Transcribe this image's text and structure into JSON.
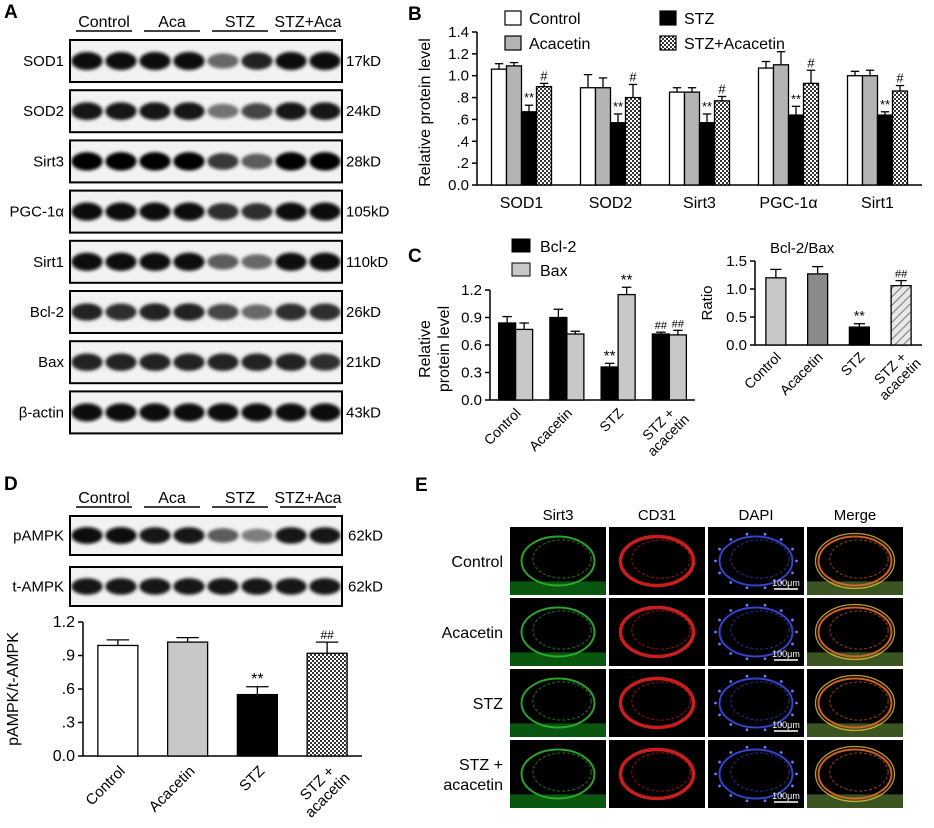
{
  "panels": {
    "A": "A",
    "B": "B",
    "C": "C",
    "D": "D",
    "E": "E"
  },
  "panel_a": {
    "groups": [
      "Control",
      "Aca",
      "STZ",
      "STZ+Aca"
    ],
    "blots": [
      {
        "name": "SOD1",
        "size": "17kD",
        "intensity": [
          0.95,
          0.95,
          0.95,
          0.95,
          0.55,
          0.85,
          0.95,
          0.95
        ]
      },
      {
        "name": "SOD2",
        "size": "24kD",
        "intensity": [
          0.9,
          0.9,
          0.9,
          0.9,
          0.5,
          0.7,
          0.9,
          0.9
        ]
      },
      {
        "name": "Sirt3",
        "size": "28kD",
        "intensity": [
          1,
          1,
          1,
          1,
          0.75,
          0.6,
          1,
          1
        ]
      },
      {
        "name": "PGC-1α",
        "size": "105kD",
        "intensity": [
          0.95,
          0.95,
          0.95,
          0.95,
          0.8,
          0.8,
          0.95,
          0.95
        ]
      },
      {
        "name": "Sirt1",
        "size": "110kD",
        "intensity": [
          0.95,
          0.95,
          0.95,
          0.95,
          0.6,
          0.55,
          0.95,
          0.95
        ]
      },
      {
        "name": "Bcl-2",
        "size": "26kD",
        "intensity": [
          0.85,
          0.8,
          0.85,
          0.85,
          0.7,
          0.55,
          0.8,
          0.8
        ]
      },
      {
        "name": "Bax",
        "size": "21kD",
        "intensity": [
          0.85,
          0.85,
          0.85,
          0.85,
          0.85,
          0.85,
          0.85,
          0.8
        ]
      },
      {
        "name": "β-actin",
        "size": "43kD",
        "intensity": [
          0.95,
          0.95,
          0.95,
          0.95,
          0.95,
          0.95,
          0.95,
          0.95
        ]
      }
    ]
  },
  "panel_d_blots": {
    "groups": [
      "Control",
      "Aca",
      "STZ",
      "STZ+Aca"
    ],
    "blots": [
      {
        "name": "pAMPK",
        "size": "62kD",
        "intensity": [
          0.95,
          0.95,
          0.9,
          0.9,
          0.6,
          0.45,
          0.9,
          0.9
        ]
      },
      {
        "name": "t-AMPK",
        "size": "62kD",
        "intensity": [
          0.9,
          0.9,
          0.9,
          0.9,
          0.9,
          0.9,
          0.9,
          0.9
        ]
      }
    ]
  },
  "panel_e": {
    "columns": [
      "Sirt3",
      "CD31",
      "DAPI",
      "Merge"
    ],
    "rows": [
      "Control",
      "Acacetin",
      "STZ",
      "STZ +\nacacetin"
    ],
    "row_lines": [
      [
        "Control"
      ],
      [
        "Acacetin"
      ],
      [
        "STZ"
      ],
      [
        "STZ +",
        "acacetin"
      ]
    ],
    "scale_bar": "100μm",
    "column_colors": [
      "#2fb52f",
      "#e02020",
      "#3a4adf",
      "#e06a2a"
    ]
  },
  "chart_data": [
    {
      "id": "B",
      "type": "bar",
      "categories": [
        "SOD1",
        "SOD2",
        "Sirt3",
        "PGC-1α",
        "Sirt1"
      ],
      "ylabel": "Relative protein level",
      "ylim": [
        0,
        1.4
      ],
      "yticks": [
        "0.0",
        ".2",
        ".4",
        ".6",
        ".8",
        "1.0",
        "1.2",
        "1.4"
      ],
      "series": [
        {
          "name": "Control",
          "values": [
            1.06,
            0.89,
            0.85,
            1.07,
            1.0
          ],
          "errors": [
            0.05,
            0.12,
            0.04,
            0.06,
            0.04
          ],
          "fill": "white",
          "marks": [
            "",
            "",
            "",
            "",
            ""
          ]
        },
        {
          "name": "Acacetin",
          "values": [
            1.09,
            0.89,
            0.85,
            1.1,
            1.0
          ],
          "errors": [
            0.03,
            0.09,
            0.04,
            0.12,
            0.05
          ],
          "fill": "grey",
          "marks": [
            "",
            "",
            "",
            "",
            ""
          ]
        },
        {
          "name": "STZ",
          "values": [
            0.67,
            0.57,
            0.57,
            0.64,
            0.64
          ],
          "errors": [
            0.06,
            0.08,
            0.08,
            0.08,
            0.03
          ],
          "fill": "black",
          "marks": [
            "**",
            "**",
            "**",
            "**",
            "**"
          ]
        },
        {
          "name": "STZ+Acacetin",
          "values": [
            0.9,
            0.8,
            0.77,
            0.93,
            0.86
          ],
          "errors": [
            0.03,
            0.12,
            0.04,
            0.12,
            0.05
          ],
          "fill": "check",
          "marks": [
            "#",
            "#",
            "#",
            "#",
            "#"
          ]
        }
      ]
    },
    {
      "id": "C-left",
      "type": "bar",
      "categories": [
        "Control",
        "Acacetin",
        "STZ",
        "STZ +\nacacetin"
      ],
      "category_lines": [
        [
          "Control"
        ],
        [
          "Acacetin"
        ],
        [
          "STZ"
        ],
        [
          "STZ +",
          "acacetin"
        ]
      ],
      "ylabel": "Relative protein level",
      "ylabel_lines": [
        "Relative",
        "protein level"
      ],
      "ylim": [
        0,
        1.2
      ],
      "yticks": [
        "0.0",
        "0.3",
        "0.6",
        "0.9",
        "1.2"
      ],
      "series": [
        {
          "name": "Bcl-2",
          "values": [
            0.84,
            0.9,
            0.36,
            0.72
          ],
          "errors": [
            0.07,
            0.09,
            0.04,
            0.02
          ],
          "fill": "black",
          "marks": [
            "",
            "",
            "**",
            "##"
          ]
        },
        {
          "name": "Bax",
          "values": [
            0.77,
            0.72,
            1.15,
            0.71
          ],
          "errors": [
            0.07,
            0.03,
            0.08,
            0.05
          ],
          "fill": "lightgrey",
          "marks": [
            "",
            "",
            "**",
            "##"
          ]
        }
      ]
    },
    {
      "id": "C-right",
      "type": "bar",
      "title": "Bcl-2/Bax",
      "categories": [
        "Control",
        "Acacetin",
        "STZ",
        "STZ +\nacacetin"
      ],
      "category_lines": [
        [
          "Control"
        ],
        [
          "Acacetin"
        ],
        [
          "STZ"
        ],
        [
          "STZ +",
          "acacetin"
        ]
      ],
      "ylabel": "Ratio",
      "ylim": [
        0,
        1.5
      ],
      "yticks": [
        "0.0",
        "0.5",
        "1.0",
        "1.5"
      ],
      "values": [
        1.2,
        1.27,
        0.32,
        1.06
      ],
      "errors": [
        0.15,
        0.13,
        0.06,
        0.09
      ],
      "fills": [
        "lightgrey",
        "darkgrey",
        "black",
        "hatch"
      ],
      "marks": [
        "",
        "",
        "**",
        "##"
      ]
    },
    {
      "id": "D",
      "type": "bar",
      "categories": [
        "Control",
        "Acacetin",
        "STZ",
        "STZ +\nacacetin"
      ],
      "category_lines": [
        [
          "Control"
        ],
        [
          "Acacetin"
        ],
        [
          "STZ"
        ],
        [
          "STZ +",
          "acacetin"
        ]
      ],
      "ylabel": "pAMPK/t-AMPK",
      "ylim": [
        0,
        1.2
      ],
      "yticks": [
        "0.0",
        ".3",
        ".6",
        ".9",
        "1.2"
      ],
      "values": [
        0.99,
        1.02,
        0.55,
        0.92
      ],
      "errors": [
        0.05,
        0.04,
        0.07,
        0.1
      ],
      "fills": [
        "white",
        "lightgrey",
        "black",
        "check"
      ],
      "marks": [
        "",
        "",
        "**",
        "##"
      ]
    }
  ]
}
